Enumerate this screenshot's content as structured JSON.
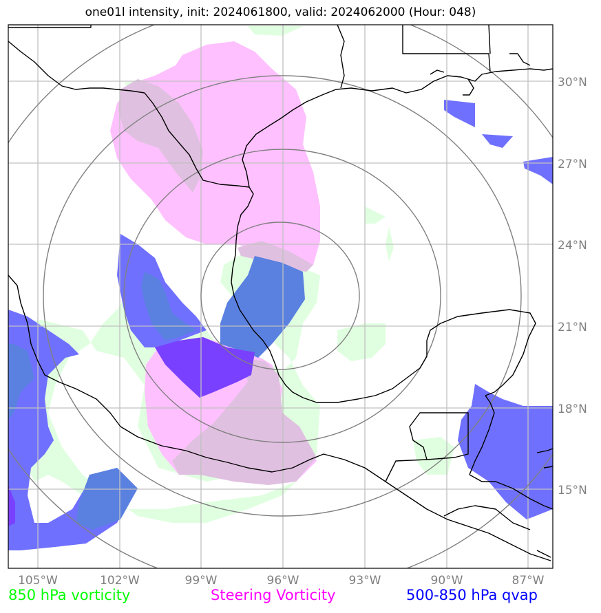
{
  "title": "one01l intensity, init: 2024061800, valid: 2024062000 (Hour: 048)",
  "legend": {
    "vorticity": "850 hPa vorticity",
    "steering": "Steering Vorticity",
    "qvap": "500-850 hPa qvap"
  },
  "colors": {
    "vorticity": "#00ff00",
    "steering": "#ff00ff",
    "qvap": "#0000ff",
    "vorticity_fill": "#e0ffe0",
    "steering_fill": "#ffc0ff",
    "qvap_fill": "#7070ff",
    "overlap_fill": "#e0c0e0",
    "qvap_vort_overlap": "#5a80e0",
    "qvap_steer_overlap": "#7a40ff",
    "range_rings": "#808080",
    "coastline": "#000000"
  },
  "map": {
    "lon_range": [
      -106,
      -86
    ],
    "lat_range": [
      12.5,
      32.5
    ],
    "center": {
      "lon": -96,
      "lat": 21.5
    }
  },
  "lon_ticks": [
    "105°W",
    "102°W",
    "99°W",
    "96°W",
    "93°W",
    "90°W",
    "87°W"
  ],
  "lat_ticks": [
    "30°N",
    "27°N",
    "24°N",
    "21°N",
    "18°N",
    "15°N"
  ]
}
